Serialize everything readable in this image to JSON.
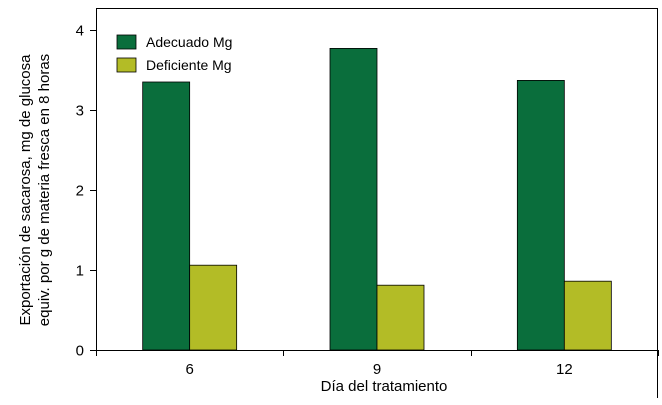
{
  "chart_data": {
    "type": "bar",
    "categories": [
      "6",
      "9",
      "12"
    ],
    "series": [
      {
        "name": "Adecuado Mg",
        "color": "#0a6e3c",
        "values": [
          3.35,
          3.77,
          3.37
        ]
      },
      {
        "name": "Deficiente Mg",
        "color": "#b3bc26",
        "values": [
          1.06,
          0.81,
          0.86
        ]
      }
    ],
    "title": "",
    "xlabel": "Día del tratamiento",
    "ylabel_lines": [
      "Exportación de sacarosa, mg de glucosa",
      "equiv. por g de materia fresca en 8 horas"
    ],
    "ylim": [
      0,
      4
    ],
    "yticks": [
      0,
      1,
      2,
      3,
      4
    ],
    "grid": false,
    "legend_position": "top-left"
  }
}
